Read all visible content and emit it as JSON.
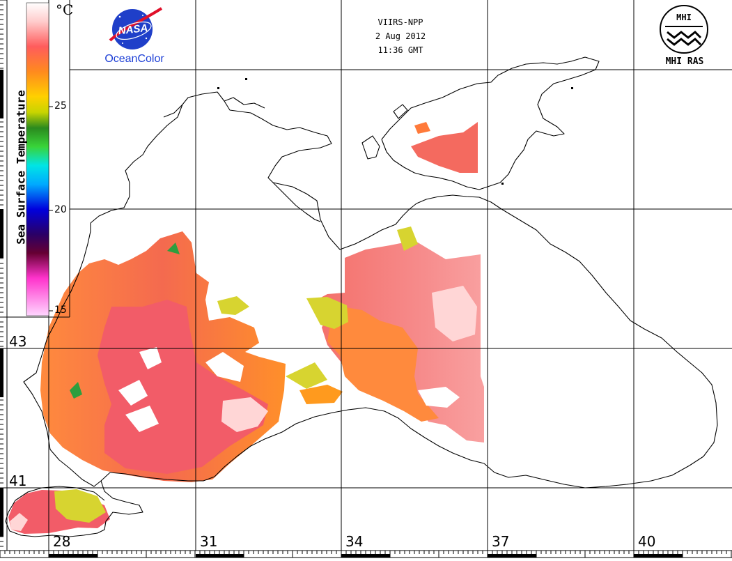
{
  "header": {
    "sensor": "VIIRS-NPP",
    "date": "2 Aug 2012",
    "time": "11:36 GMT"
  },
  "logos": {
    "nasa_wordmark": "NASA",
    "oceancolor_label": "OceanColor",
    "mhi_label": "MHI RAS",
    "mhi_monogram": "MHI"
  },
  "colorbar": {
    "title": "Sea Surface Temperature",
    "unit": "°C",
    "ticks": [
      "25",
      "20",
      "15"
    ],
    "range": [
      15,
      30
    ],
    "colors": [
      "#ffffff",
      "#ff6f6f",
      "#ff8a1e",
      "#ffd000",
      "#d8d800",
      "#2db52d",
      "#00e0e0",
      "#1e90ff",
      "#0000cc",
      "#4b0033",
      "#ff00ff",
      "#ffd0ff"
    ]
  },
  "axes": {
    "latitude_labels": [
      "43",
      "41"
    ],
    "longitude_labels": [
      "28",
      "31",
      "34",
      "37",
      "40"
    ]
  },
  "map": {
    "region": "Black Sea",
    "coast_color": "#000000",
    "grid_color": "#000000",
    "cloud_color": "#ffffff",
    "sst_colors": {
      "warm_core": "#f25c68",
      "warmest": "#ffd6d6",
      "warm": "#ff8a3d",
      "medium": "#ff9a1e",
      "cool": "#d7d430",
      "cooler": "#2e9e3e"
    }
  }
}
